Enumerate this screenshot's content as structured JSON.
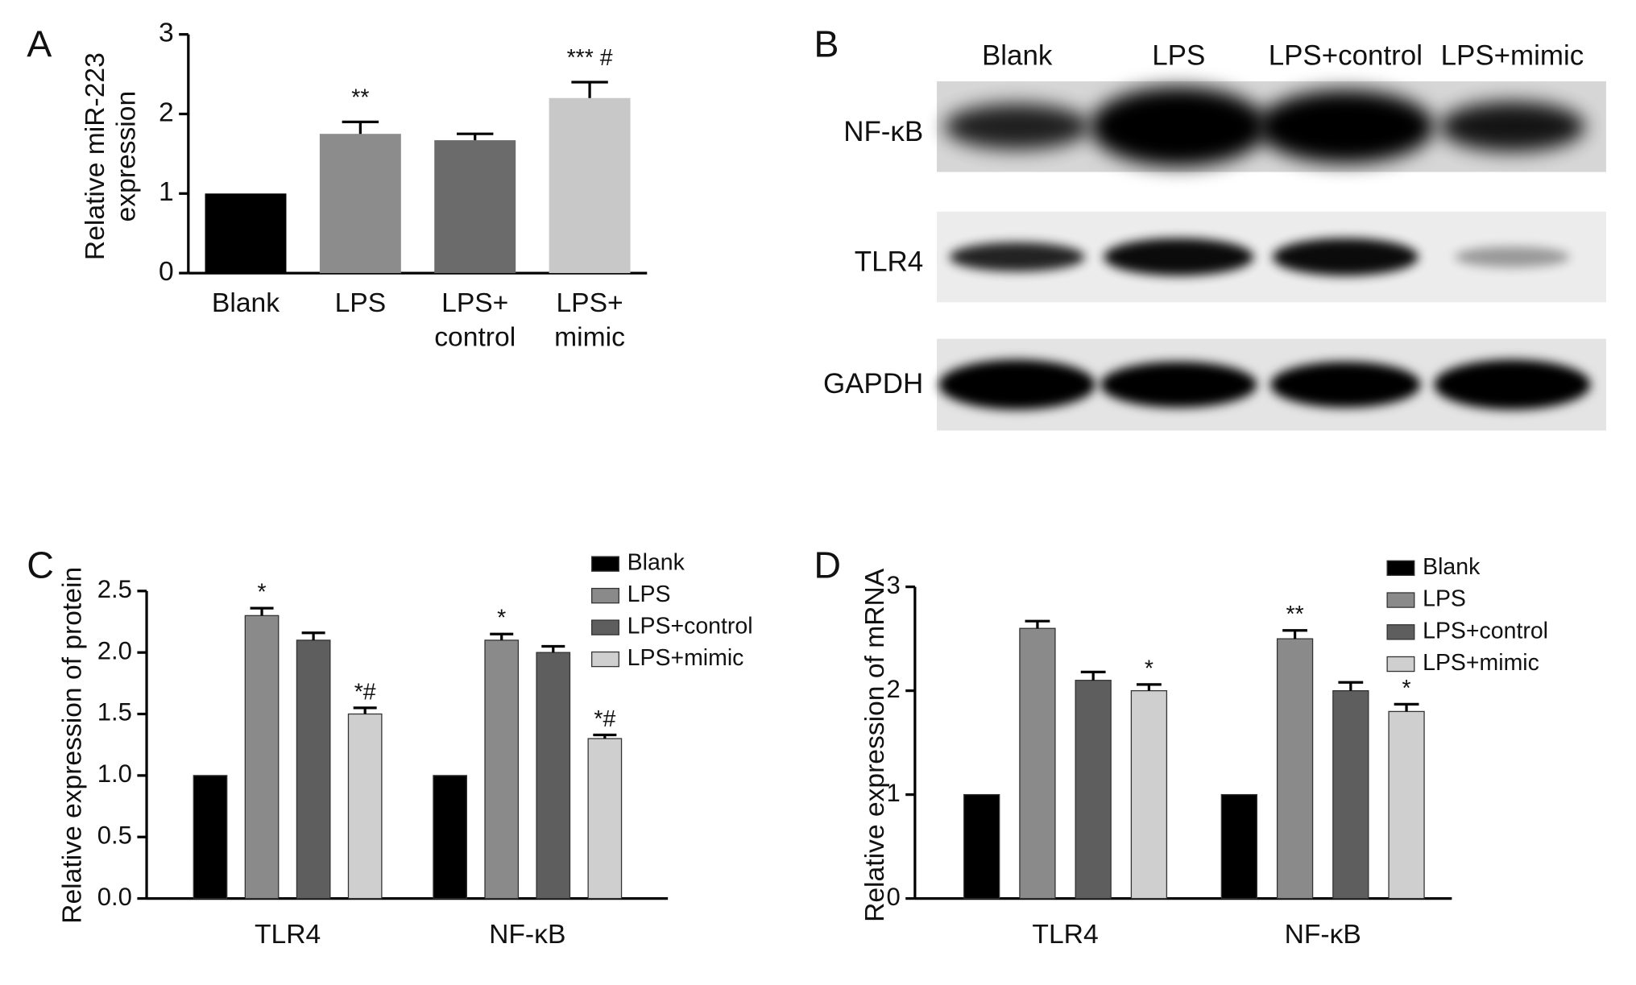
{
  "chart_data": [
    {
      "type": "bar",
      "panel_label": "A",
      "ylabel": [
        "Relative miR-223",
        "expression"
      ],
      "categories": [
        "Blank",
        "LPS",
        [
          "LPS+",
          "control"
        ],
        [
          "LPS+",
          "mimic"
        ]
      ],
      "values": [
        1,
        1.75,
        1.67,
        2.2
      ],
      "errors": [
        0,
        0.15,
        0.08,
        0.2
      ],
      "colors": [
        "#000000",
        "#8c8c8c",
        "#6b6b6b",
        "#c8c8c8"
      ],
      "annotations": [
        null,
        "**",
        null,
        "*** #"
      ],
      "ylim": [
        0,
        3
      ],
      "yticks": [
        0,
        1,
        2,
        3
      ]
    },
    {
      "type": "grouped_bar",
      "panel_label": "C",
      "ylabel": "Relative expression of protein",
      "categories": [
        "TLR4",
        "NF-κB"
      ],
      "series": [
        {
          "name": "Blank",
          "color": "#000000",
          "values": [
            1,
            1
          ],
          "errors": [
            0,
            0
          ],
          "annotations": [
            null,
            null
          ]
        },
        {
          "name": "LPS",
          "color": "#8a8a8a",
          "values": [
            2.3,
            2.1
          ],
          "errors": [
            0.06,
            0.05
          ],
          "annotations": [
            "*",
            "*"
          ]
        },
        {
          "name": "LPS+control",
          "color": "#5e5e5e",
          "values": [
            2.1,
            2.0
          ],
          "errors": [
            0.06,
            0.05
          ],
          "annotations": [
            null,
            null
          ]
        },
        {
          "name": "LPS+mimic",
          "color": "#cfcfcf",
          "values": [
            1.5,
            1.3
          ],
          "errors": [
            0.05,
            0.03
          ],
          "annotations": [
            "*#",
            "*#"
          ]
        }
      ],
      "ylim": [
        0,
        2.5
      ],
      "yticks": [
        {
          "value": 0,
          "label": "0.0"
        },
        0.5,
        {
          "value": 1,
          "label": "1.0"
        },
        1.5,
        {
          "value": 2,
          "label": "2.0"
        },
        2.5
      ],
      "legend": "upper right"
    },
    {
      "type": "grouped_bar",
      "panel_label": "D",
      "ylabel": "Relative expression of mRNA",
      "categories": [
        "TLR4",
        "NF-κB"
      ],
      "series": [
        {
          "name": "Blank",
          "color": "#000000",
          "values": [
            1,
            1
          ],
          "errors": [
            0,
            0
          ],
          "annotations": [
            null,
            null
          ]
        },
        {
          "name": "LPS",
          "color": "#8a8a8a",
          "values": [
            2.6,
            2.5
          ],
          "errors": [
            0.07,
            0.08
          ],
          "annotations": [
            null,
            "**"
          ]
        },
        {
          "name": "LPS+control",
          "color": "#5e5e5e",
          "values": [
            2.1,
            2.0
          ],
          "errors": [
            0.08,
            0.08
          ],
          "annotations": [
            null,
            null
          ]
        },
        {
          "name": "LPS+mimic",
          "color": "#cfcfcf",
          "values": [
            2.0,
            1.8
          ],
          "errors": [
            0.06,
            0.07
          ],
          "annotations": [
            "*",
            "*"
          ]
        }
      ],
      "ylim": [
        0,
        3
      ],
      "yticks": [
        0,
        1,
        2,
        3
      ],
      "legend": "upper right"
    }
  ],
  "blot": {
    "panel_label": "B",
    "lanes": [
      "Blank",
      "LPS",
      "LPS+control",
      "LPS+mimic"
    ],
    "rows": [
      "NF-κB",
      "TLR4",
      "GAPDH"
    ]
  }
}
